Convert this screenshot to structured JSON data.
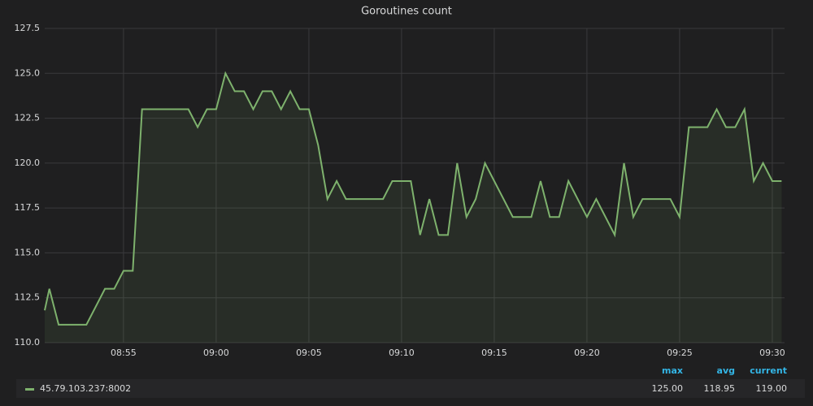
{
  "chart_data": {
    "type": "line",
    "title": "Goroutines count",
    "x": [
      530.75,
      531,
      531.5,
      533,
      534,
      534.5,
      535,
      535.5,
      536,
      538.5,
      539,
      539.5,
      540,
      540.5,
      541,
      541.5,
      542,
      542.5,
      543,
      543.5,
      544,
      544.5,
      545,
      545.5,
      546,
      546.5,
      547,
      549,
      549.5,
      550.5,
      551,
      551.5,
      552,
      552.5,
      553,
      553.5,
      554,
      554.5,
      556,
      557,
      557.5,
      558,
      558.5,
      559,
      560,
      560.5,
      561.5,
      562,
      562.5,
      563,
      564.5,
      565,
      565.5,
      566.5,
      567,
      567.5,
      568,
      568.5,
      569,
      569.5,
      570,
      570.5
    ],
    "series": [
      {
        "name": "45.79.103.237:8002",
        "color": "#7eb26d",
        "values": [
          111.8,
          113,
          111,
          111,
          113,
          113,
          114,
          114,
          123,
          123,
          122,
          123,
          123,
          125,
          124,
          124,
          123,
          124,
          124,
          123,
          124,
          123,
          123,
          121,
          118,
          119,
          118,
          118,
          119,
          119,
          116,
          118,
          116,
          116,
          120,
          117,
          118,
          120,
          117,
          117,
          119,
          117,
          117,
          119,
          117,
          118,
          116,
          120,
          117,
          118,
          118,
          117,
          122,
          122,
          123,
          122,
          122,
          123,
          119,
          120,
          119,
          119
        ]
      }
    ],
    "xlim": [
      530.75,
      570.66
    ],
    "xticks": [
      {
        "value": 535,
        "label": "08:55"
      },
      {
        "value": 540,
        "label": "09:00"
      },
      {
        "value": 545,
        "label": "09:05"
      },
      {
        "value": 550,
        "label": "09:10"
      },
      {
        "value": 555,
        "label": "09:15"
      },
      {
        "value": 560,
        "label": "09:20"
      },
      {
        "value": 565,
        "label": "09:25"
      },
      {
        "value": 570,
        "label": "09:30"
      }
    ],
    "ylim": [
      110,
      127.5
    ],
    "yticks": [
      {
        "value": 110,
        "label": "110.0"
      },
      {
        "value": 112.5,
        "label": "112.5"
      },
      {
        "value": 115,
        "label": "115.0"
      },
      {
        "value": 117.5,
        "label": "117.5"
      },
      {
        "value": 120,
        "label": "120.0"
      },
      {
        "value": 122.5,
        "label": "122.5"
      },
      {
        "value": 125,
        "label": "125.0"
      },
      {
        "value": 127.5,
        "label": "127.5"
      }
    ],
    "grid": true,
    "legend_table": {
      "columns": [
        "max",
        "avg",
        "current"
      ],
      "values": [
        125,
        118.95,
        119
      ],
      "value_labels": [
        "125.00",
        "118.95",
        "119.00"
      ]
    }
  }
}
